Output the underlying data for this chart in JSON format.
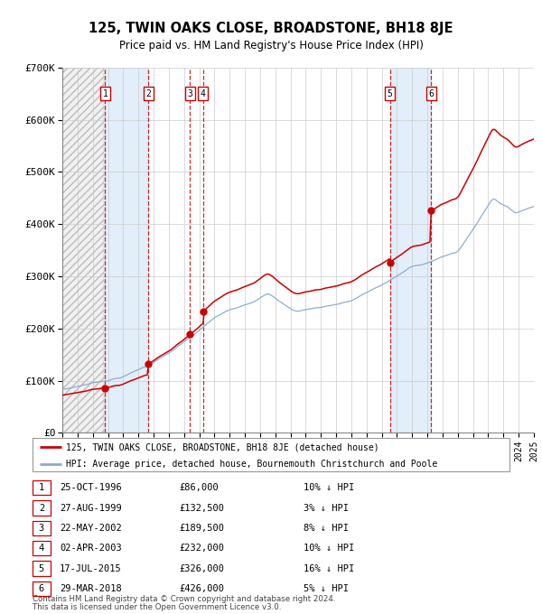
{
  "title": "125, TWIN OAKS CLOSE, BROADSTONE, BH18 8JE",
  "subtitle": "Price paid vs. HM Land Registry's House Price Index (HPI)",
  "ylim": [
    0,
    700000
  ],
  "yticks": [
    0,
    100000,
    200000,
    300000,
    400000,
    500000,
    600000,
    700000
  ],
  "ytick_labels": [
    "£0",
    "£100K",
    "£200K",
    "£300K",
    "£400K",
    "£500K",
    "£600K",
    "£700K"
  ],
  "x_start_year": 1994,
  "x_end_year": 2025,
  "sale_color": "#cc0000",
  "hpi_color": "#88aacc",
  "purchases": [
    {
      "label": "1",
      "year": 1996.82,
      "price": 86000
    },
    {
      "label": "2",
      "year": 1999.65,
      "price": 132500
    },
    {
      "label": "3",
      "year": 2002.39,
      "price": 189500
    },
    {
      "label": "4",
      "year": 2003.25,
      "price": 232000
    },
    {
      "label": "5",
      "year": 2015.54,
      "price": 326000
    },
    {
      "label": "6",
      "year": 2018.24,
      "price": 426000
    }
  ],
  "legend_line1": "125, TWIN OAKS CLOSE, BROADSTONE, BH18 8JE (detached house)",
  "legend_line2": "HPI: Average price, detached house, Bournemouth Christchurch and Poole",
  "table_rows": [
    [
      "1",
      "25-OCT-1996",
      "£86,000",
      "10% ↓ HPI"
    ],
    [
      "2",
      "27-AUG-1999",
      "£132,500",
      "3% ↓ HPI"
    ],
    [
      "3",
      "22-MAY-2002",
      "£189,500",
      "8% ↓ HPI"
    ],
    [
      "4",
      "02-APR-2003",
      "£232,000",
      "10% ↓ HPI"
    ],
    [
      "5",
      "17-JUL-2015",
      "£326,000",
      "16% ↓ HPI"
    ],
    [
      "6",
      "29-MAR-2018",
      "£426,000",
      "5% ↓ HPI"
    ]
  ],
  "footer_line1": "Contains HM Land Registry data © Crown copyright and database right 2024.",
  "footer_line2": "This data is licensed under the Open Government Licence v3.0."
}
